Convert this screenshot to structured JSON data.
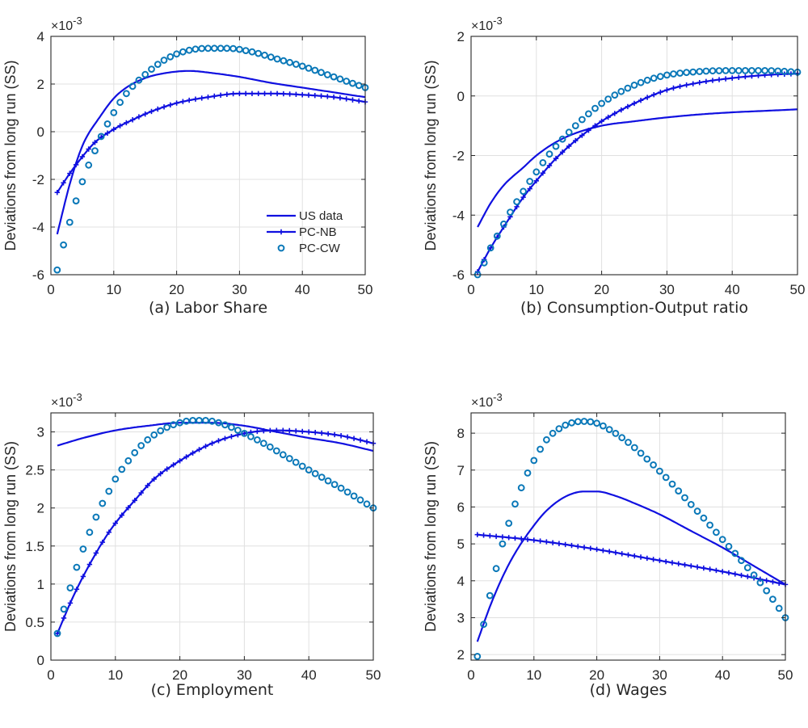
{
  "colors": {
    "us_data": "#1010e0",
    "pc_nb": "#1010e0",
    "pc_cw": "#0a78b8",
    "grid": "#e0e0e0",
    "axis": "#262626"
  },
  "chart_data": [
    {
      "type": "line",
      "caption": "(a) Labor Share",
      "ylabel": "Deviations from long run (SS)",
      "multiplier": "×10",
      "multiplier_exp": "-3",
      "xlim": [
        0,
        50
      ],
      "ylim": [
        -6,
        4
      ],
      "xticks": [
        0,
        10,
        20,
        30,
        40,
        50
      ],
      "yticks": [
        -6,
        -4,
        -2,
        0,
        2,
        4
      ],
      "ytick_labels": [
        "-6",
        "-4",
        "-2",
        "0",
        "2",
        "4"
      ],
      "legend": {
        "placement": "bottom-right",
        "entries": [
          "US data",
          "PC-NB",
          "PC-CW"
        ]
      },
      "series": [
        {
          "name": "US data",
          "style": "line",
          "anchors": [
            [
              1,
              -4.3
            ],
            [
              3,
              -2.2
            ],
            [
              5,
              -0.6
            ],
            [
              8,
              0.7
            ],
            [
              10,
              1.4
            ],
            [
              12,
              1.85
            ],
            [
              15,
              2.25
            ],
            [
              18,
              2.45
            ],
            [
              22,
              2.55
            ],
            [
              26,
              2.45
            ],
            [
              30,
              2.3
            ],
            [
              35,
              2.05
            ],
            [
              40,
              1.85
            ],
            [
              45,
              1.65
            ],
            [
              50,
              1.45
            ]
          ]
        },
        {
          "name": "PC-NB",
          "style": "plus",
          "anchors": [
            [
              1,
              -2.55
            ],
            [
              3,
              -1.75
            ],
            [
              5,
              -1.05
            ],
            [
              7,
              -0.45
            ],
            [
              10,
              0.1
            ],
            [
              13,
              0.5
            ],
            [
              16,
              0.85
            ],
            [
              20,
              1.2
            ],
            [
              25,
              1.45
            ],
            [
              30,
              1.6
            ],
            [
              35,
              1.6
            ],
            [
              40,
              1.55
            ],
            [
              45,
              1.45
            ],
            [
              50,
              1.25
            ]
          ]
        },
        {
          "name": "PC-CW",
          "style": "circle",
          "anchors": [
            [
              1,
              -5.8
            ],
            [
              2,
              -4.75
            ],
            [
              3,
              -3.8
            ],
            [
              4,
              -2.9
            ],
            [
              5,
              -2.1
            ],
            [
              6,
              -1.4
            ],
            [
              7,
              -0.8
            ],
            [
              8,
              -0.2
            ],
            [
              10,
              0.8
            ],
            [
              12,
              1.6
            ],
            [
              15,
              2.4
            ],
            [
              18,
              3.0
            ],
            [
              21,
              3.35
            ],
            [
              25,
              3.5
            ],
            [
              28,
              3.5
            ],
            [
              32,
              3.35
            ],
            [
              36,
              3.05
            ],
            [
              40,
              2.75
            ],
            [
              45,
              2.3
            ],
            [
              50,
              1.85
            ]
          ]
        }
      ]
    },
    {
      "type": "line",
      "caption": "(b) Consumption-Output ratio",
      "ylabel": "Deviations from long run (SS)",
      "multiplier": "×10",
      "multiplier_exp": "-3",
      "xlim": [
        0,
        50
      ],
      "ylim": [
        -6,
        2
      ],
      "xticks": [
        0,
        10,
        20,
        30,
        40,
        50
      ],
      "yticks": [
        -6,
        -4,
        -2,
        0,
        2
      ],
      "ytick_labels": [
        "-6",
        "-4",
        "-2",
        "0",
        "2"
      ],
      "series": [
        {
          "name": "US data",
          "style": "line",
          "anchors": [
            [
              1,
              -4.4
            ],
            [
              3,
              -3.6
            ],
            [
              5,
              -3.0
            ],
            [
              8,
              -2.4
            ],
            [
              10,
              -2.0
            ],
            [
              13,
              -1.55
            ],
            [
              16,
              -1.25
            ],
            [
              20,
              -1.0
            ],
            [
              25,
              -0.85
            ],
            [
              30,
              -0.72
            ],
            [
              35,
              -0.62
            ],
            [
              40,
              -0.55
            ],
            [
              45,
              -0.5
            ],
            [
              50,
              -0.45
            ]
          ]
        },
        {
          "name": "PC-NB",
          "style": "plus",
          "anchors": [
            [
              1,
              -5.9
            ],
            [
              3,
              -5.1
            ],
            [
              5,
              -4.4
            ],
            [
              8,
              -3.4
            ],
            [
              10,
              -2.85
            ],
            [
              13,
              -2.1
            ],
            [
              16,
              -1.5
            ],
            [
              20,
              -0.85
            ],
            [
              25,
              -0.25
            ],
            [
              30,
              0.2
            ],
            [
              35,
              0.45
            ],
            [
              40,
              0.6
            ],
            [
              45,
              0.7
            ],
            [
              50,
              0.75
            ]
          ]
        },
        {
          "name": "PC-CW",
          "style": "circle",
          "anchors": [
            [
              1,
              -6.0
            ],
            [
              2,
              -5.6
            ],
            [
              3,
              -5.1
            ],
            [
              4,
              -4.7
            ],
            [
              5,
              -4.3
            ],
            [
              6,
              -3.9
            ],
            [
              7,
              -3.55
            ],
            [
              8,
              -3.2
            ],
            [
              10,
              -2.55
            ],
            [
              12,
              -1.95
            ],
            [
              14,
              -1.45
            ],
            [
              16,
              -1.0
            ],
            [
              18,
              -0.6
            ],
            [
              20,
              -0.25
            ],
            [
              23,
              0.15
            ],
            [
              26,
              0.45
            ],
            [
              30,
              0.7
            ],
            [
              35,
              0.82
            ],
            [
              40,
              0.85
            ],
            [
              45,
              0.85
            ],
            [
              50,
              0.8
            ]
          ]
        }
      ]
    },
    {
      "type": "line",
      "caption": "(c) Employment",
      "ylabel": "Deviations from long run (SS)",
      "multiplier": "×10",
      "multiplier_exp": "-3",
      "xlim": [
        0,
        50
      ],
      "ylim": [
        0,
        3.25
      ],
      "xticks": [
        0,
        10,
        20,
        30,
        40,
        50
      ],
      "yticks": [
        0,
        0.5,
        1,
        1.5,
        2,
        2.5,
        3
      ],
      "ytick_labels": [
        "0",
        "0.5",
        "1",
        "1.5",
        "2",
        "2.5",
        "3"
      ],
      "series": [
        {
          "name": "US data",
          "style": "line",
          "anchors": [
            [
              1,
              2.82
            ],
            [
              5,
              2.92
            ],
            [
              10,
              3.02
            ],
            [
              15,
              3.08
            ],
            [
              20,
              3.12
            ],
            [
              25,
              3.12
            ],
            [
              30,
              3.08
            ],
            [
              35,
              3.0
            ],
            [
              40,
              2.92
            ],
            [
              45,
              2.85
            ],
            [
              50,
              2.75
            ]
          ]
        },
        {
          "name": "PC-NB",
          "style": "plus",
          "anchors": [
            [
              1,
              0.35
            ],
            [
              3,
              0.75
            ],
            [
              5,
              1.1
            ],
            [
              8,
              1.55
            ],
            [
              10,
              1.8
            ],
            [
              13,
              2.1
            ],
            [
              16,
              2.38
            ],
            [
              20,
              2.62
            ],
            [
              25,
              2.85
            ],
            [
              30,
              2.98
            ],
            [
              35,
              3.02
            ],
            [
              40,
              3.0
            ],
            [
              45,
              2.95
            ],
            [
              50,
              2.85
            ]
          ]
        },
        {
          "name": "PC-CW",
          "style": "circle",
          "anchors": [
            [
              1,
              0.35
            ],
            [
              2,
              0.67
            ],
            [
              3,
              0.95
            ],
            [
              4,
              1.22
            ],
            [
              5,
              1.46
            ],
            [
              6,
              1.68
            ],
            [
              7,
              1.88
            ],
            [
              8,
              2.06
            ],
            [
              9,
              2.22
            ],
            [
              10,
              2.38
            ],
            [
              12,
              2.62
            ],
            [
              14,
              2.82
            ],
            [
              16,
              2.96
            ],
            [
              18,
              3.06
            ],
            [
              20,
              3.12
            ],
            [
              22,
              3.15
            ],
            [
              24,
              3.15
            ],
            [
              26,
              3.12
            ],
            [
              28,
              3.06
            ],
            [
              30,
              2.98
            ],
            [
              33,
              2.85
            ],
            [
              36,
              2.7
            ],
            [
              40,
              2.5
            ],
            [
              45,
              2.26
            ],
            [
              50,
              2.0
            ]
          ]
        }
      ]
    },
    {
      "type": "line",
      "caption": "(d) Wages",
      "ylabel": "Deviations from long run (SS)",
      "multiplier": "×10",
      "multiplier_exp": "-3",
      "xlim": [
        0,
        50
      ],
      "ylim": [
        1.85,
        8.55
      ],
      "xticks": [
        0,
        10,
        20,
        30,
        40,
        50
      ],
      "yticks": [
        2,
        3,
        4,
        5,
        6,
        7,
        8
      ],
      "ytick_labels": [
        "2",
        "3",
        "4",
        "5",
        "6",
        "7",
        "8"
      ],
      "series": [
        {
          "name": "US data",
          "style": "line",
          "anchors": [
            [
              1,
              2.35
            ],
            [
              3,
              3.3
            ],
            [
              5,
              4.1
            ],
            [
              7,
              4.75
            ],
            [
              10,
              5.5
            ],
            [
              12,
              5.9
            ],
            [
              15,
              6.28
            ],
            [
              18,
              6.42
            ],
            [
              20,
              6.42
            ],
            [
              23,
              6.3
            ],
            [
              26,
              6.1
            ],
            [
              30,
              5.8
            ],
            [
              35,
              5.35
            ],
            [
              40,
              4.9
            ],
            [
              45,
              4.4
            ],
            [
              50,
              3.9
            ]
          ]
        },
        {
          "name": "PC-NB",
          "style": "plus",
          "anchors": [
            [
              1,
              5.25
            ],
            [
              10,
              5.1
            ],
            [
              20,
              4.85
            ],
            [
              30,
              4.55
            ],
            [
              40,
              4.25
            ],
            [
              50,
              3.9
            ]
          ]
        },
        {
          "name": "PC-CW",
          "style": "circle",
          "anchors": [
            [
              1,
              1.95
            ],
            [
              2,
              2.82
            ],
            [
              3,
              3.6
            ],
            [
              4,
              4.33
            ],
            [
              5,
              5.0
            ],
            [
              6,
              5.56
            ],
            [
              7,
              6.08
            ],
            [
              8,
              6.52
            ],
            [
              9,
              6.92
            ],
            [
              10,
              7.26
            ],
            [
              12,
              7.82
            ],
            [
              14,
              8.12
            ],
            [
              16,
              8.28
            ],
            [
              18,
              8.32
            ],
            [
              20,
              8.27
            ],
            [
              22,
              8.1
            ],
            [
              25,
              7.75
            ],
            [
              28,
              7.3
            ],
            [
              31,
              6.8
            ],
            [
              34,
              6.25
            ],
            [
              37,
              5.7
            ],
            [
              40,
              5.12
            ],
            [
              43,
              4.55
            ],
            [
              46,
              3.95
            ],
            [
              48,
              3.5
            ],
            [
              50,
              3.0
            ]
          ]
        }
      ]
    }
  ]
}
